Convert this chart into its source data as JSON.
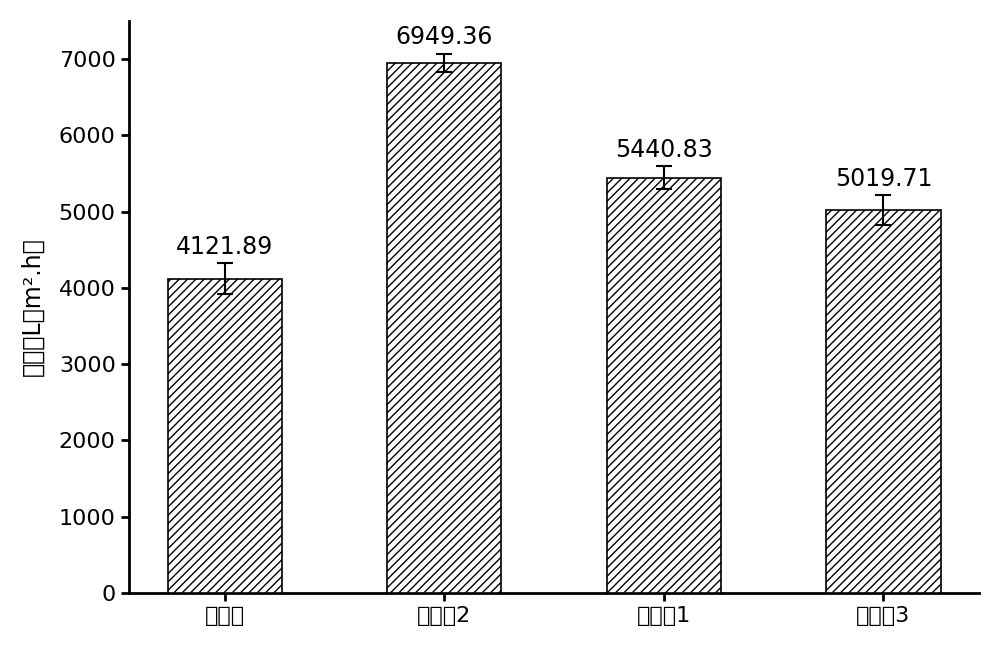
{
  "categories": [
    "对比例",
    "实施例2",
    "实施例1",
    "实施例3"
  ],
  "values": [
    4121.89,
    6949.36,
    5440.83,
    5019.71
  ],
  "errors": [
    200,
    120,
    150,
    200
  ],
  "bar_color": "#ffffff",
  "hatch": "////",
  "edge_color": "#000000",
  "ylabel": "水通量L（m².h）",
  "ylim": [
    0,
    7500
  ],
  "yticks": [
    0,
    1000,
    2000,
    3000,
    4000,
    5000,
    6000,
    7000
  ],
  "value_labels": [
    "4121.89",
    "6949.36",
    "5440.83",
    "5019.71"
  ],
  "label_fontsize": 17,
  "tick_fontsize": 16,
  "ylabel_fontsize": 17,
  "bar_width": 0.52,
  "capsize": 6,
  "error_linewidth": 1.5,
  "background_color": "#ffffff"
}
